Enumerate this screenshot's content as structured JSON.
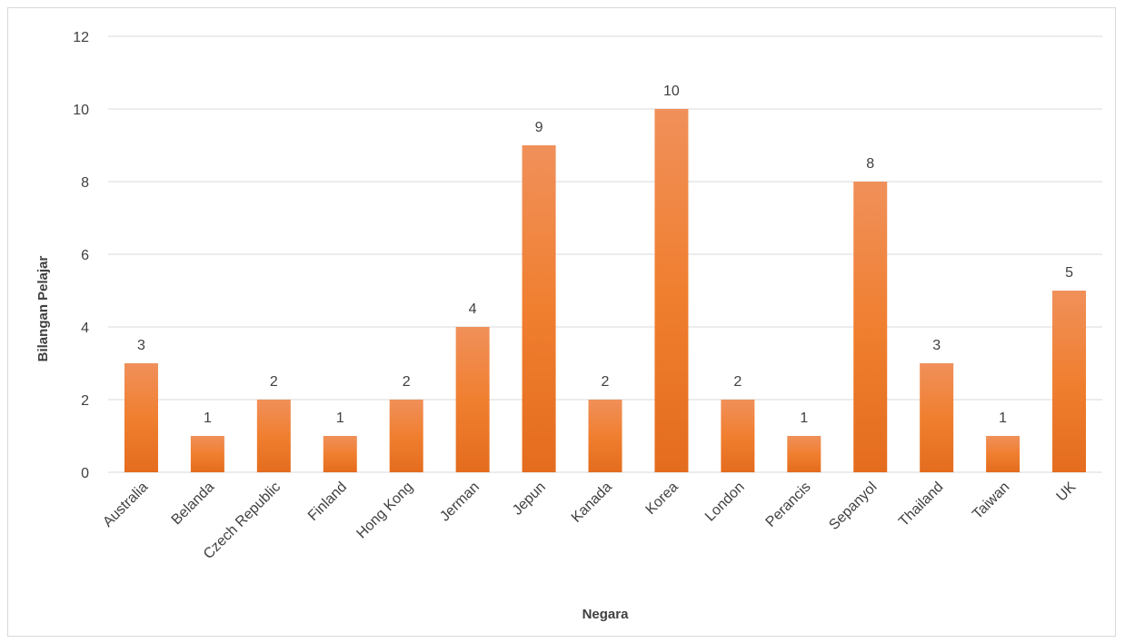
{
  "chart_data": {
    "type": "bar",
    "title": "",
    "xlabel": "Negara",
    "ylabel": "Bilangan Pelajar",
    "categories": [
      "Australia",
      "Belanda",
      "Czech Republic",
      "Finland",
      "Hong Kong",
      "Jerman",
      "Jepun",
      "Kanada",
      "Korea",
      "London",
      "Perancis",
      "Sepanyol",
      "Thailand",
      "Taiwan",
      "UK"
    ],
    "values": [
      3,
      1,
      2,
      1,
      2,
      4,
      9,
      2,
      10,
      2,
      1,
      8,
      3,
      1,
      5
    ],
    "ylim": [
      0,
      12
    ],
    "yticks": [
      0,
      2,
      4,
      6,
      8,
      10,
      12
    ],
    "grid": true,
    "legend": "none",
    "bar_color_top": "#f0905a",
    "bar_color_bottom": "#e46c1e",
    "data_labels": true
  }
}
